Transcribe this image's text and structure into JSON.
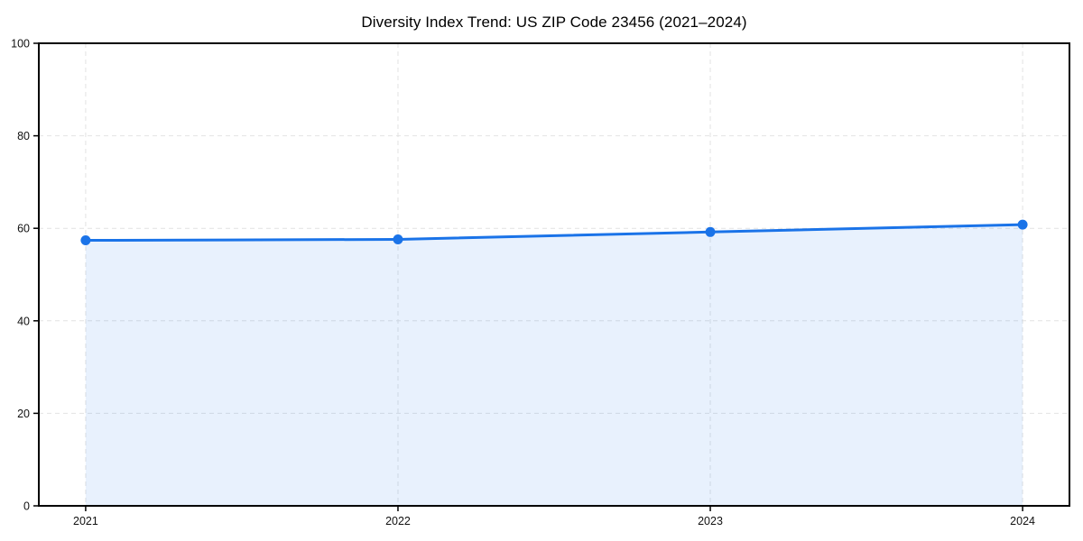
{
  "chart_data": {
    "type": "area",
    "title": "Diversity Index Trend: US ZIP Code 23456 (2021–2024)",
    "series_name": "Diversity Index",
    "x": [
      2021,
      2022,
      2023,
      2024
    ],
    "values": [
      57.4,
      57.6,
      59.2,
      60.8
    ],
    "xticks": [
      2021,
      2022,
      2023,
      2024
    ],
    "xtick_labels": [
      "2021",
      "2022",
      "2023",
      "2024"
    ],
    "yticks": [
      0,
      20,
      40,
      60,
      80,
      100
    ],
    "ytick_labels": [
      "0",
      "20",
      "40",
      "60",
      "80",
      "100"
    ],
    "xlim": [
      2020.85,
      2024.15
    ],
    "ylim": [
      0,
      100
    ],
    "xlabel": "",
    "ylabel": "",
    "grid": true,
    "grid_style": "dashed",
    "legend": "none",
    "colors": {
      "line": "#1a73e8",
      "marker": "#1a73e8",
      "fill": "rgba(26,115,232,0.10)",
      "grid": "#e2e2e2",
      "spine": "#000000",
      "tick_text": "#111111",
      "background": "#ffffff"
    }
  }
}
